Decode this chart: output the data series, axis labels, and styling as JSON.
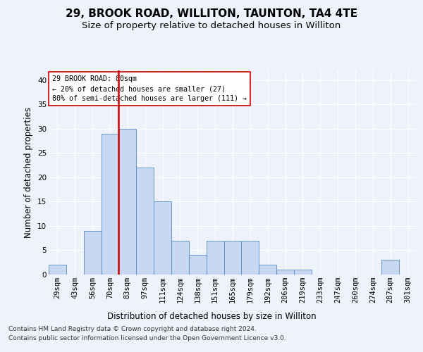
{
  "title1": "29, BROOK ROAD, WILLITON, TAUNTON, TA4 4TE",
  "title2": "Size of property relative to detached houses in Williton",
  "xlabel": "Distribution of detached houses by size in Williton",
  "ylabel": "Number of detached properties",
  "categories": [
    "29sqm",
    "43sqm",
    "56sqm",
    "70sqm",
    "83sqm",
    "97sqm",
    "111sqm",
    "124sqm",
    "138sqm",
    "151sqm",
    "165sqm",
    "179sqm",
    "192sqm",
    "206sqm",
    "219sqm",
    "233sqm",
    "247sqm",
    "260sqm",
    "274sqm",
    "287sqm",
    "301sqm"
  ],
  "bar_values": [
    2,
    0,
    9,
    29,
    30,
    22,
    15,
    7,
    4,
    7,
    7,
    7,
    2,
    1,
    1,
    0,
    0,
    0,
    0,
    3,
    0
  ],
  "bar_color": "#c6d9f0",
  "bar_edge_color": "#5a8ac6",
  "bar_width": 1.0,
  "property_line_x": 3.5,
  "property_line_color": "#cc0000",
  "ylim": [
    0,
    42
  ],
  "yticks": [
    0,
    5,
    10,
    15,
    20,
    25,
    30,
    35,
    40
  ],
  "annotation_title": "29 BROOK ROAD: 80sqm",
  "annotation_line1": "← 20% of detached houses are smaller (27)",
  "annotation_line2": "80% of semi-detached houses are larger (111) →",
  "annotation_box_color": "#ffffff",
  "annotation_box_edge": "#cc0000",
  "footer1": "Contains HM Land Registry data © Crown copyright and database right 2024.",
  "footer2": "Contains public sector information licensed under the Open Government Licence v3.0.",
  "background_color": "#eef2fa",
  "grid_color": "#ffffff",
  "title1_fontsize": 11,
  "title2_fontsize": 9.5,
  "axis_label_fontsize": 8.5,
  "tick_fontsize": 7.5,
  "footer_fontsize": 6.5
}
